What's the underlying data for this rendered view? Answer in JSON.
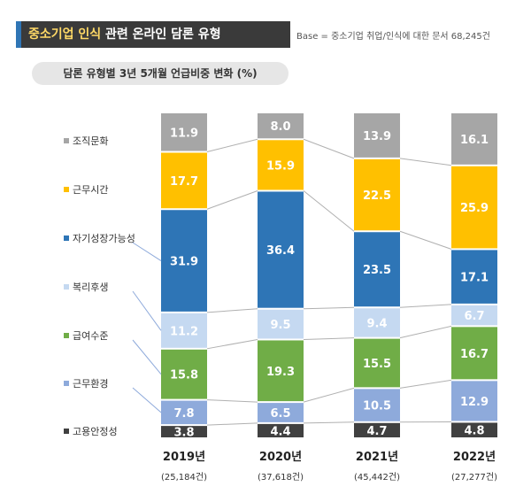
{
  "header": {
    "title_highlight": "중소기업 인식",
    "title_rest": " 관련 온라인 담론 유형",
    "base_note": "Base = 중소기업 취업/인식에 대한 문서 68,245건",
    "subtitle": "담론 유형별 3년 5개월 언급비중 변화 (%)"
  },
  "chart_data": {
    "type": "bar",
    "stacked": true,
    "normalized_percent": true,
    "title": "담론 유형별 3년 5개월 언급비중 변화 (%)",
    "categories": [
      "2019년",
      "2020년",
      "2021년",
      "2022년"
    ],
    "category_counts": [
      "(25,184건)",
      "(37,618건)",
      "(45,442건)",
      "(27,277건)"
    ],
    "series": [
      {
        "name": "고용안정성",
        "color": "#404040",
        "values": [
          3.8,
          4.4,
          4.7,
          4.8
        ]
      },
      {
        "name": "근무환경",
        "color": "#8eaadb",
        "values": [
          7.8,
          6.5,
          10.5,
          12.9
        ]
      },
      {
        "name": "급여수준",
        "color": "#70ad47",
        "values": [
          15.8,
          19.3,
          15.5,
          16.7
        ]
      },
      {
        "name": "복리후생",
        "color": "#c5d9f1",
        "values": [
          11.2,
          9.5,
          9.4,
          6.7
        ]
      },
      {
        "name": "자기성장가능성",
        "color": "#2e75b6",
        "values": [
          31.9,
          36.4,
          23.5,
          17.1
        ]
      },
      {
        "name": "근무시간",
        "color": "#ffc000",
        "values": [
          17.7,
          15.9,
          22.5,
          25.9
        ]
      },
      {
        "name": "조직문화",
        "color": "#a6a6a6",
        "values": [
          11.9,
          8.0,
          13.9,
          16.1
        ]
      }
    ],
    "ylim": [
      0,
      100
    ],
    "legend_position": "left"
  }
}
